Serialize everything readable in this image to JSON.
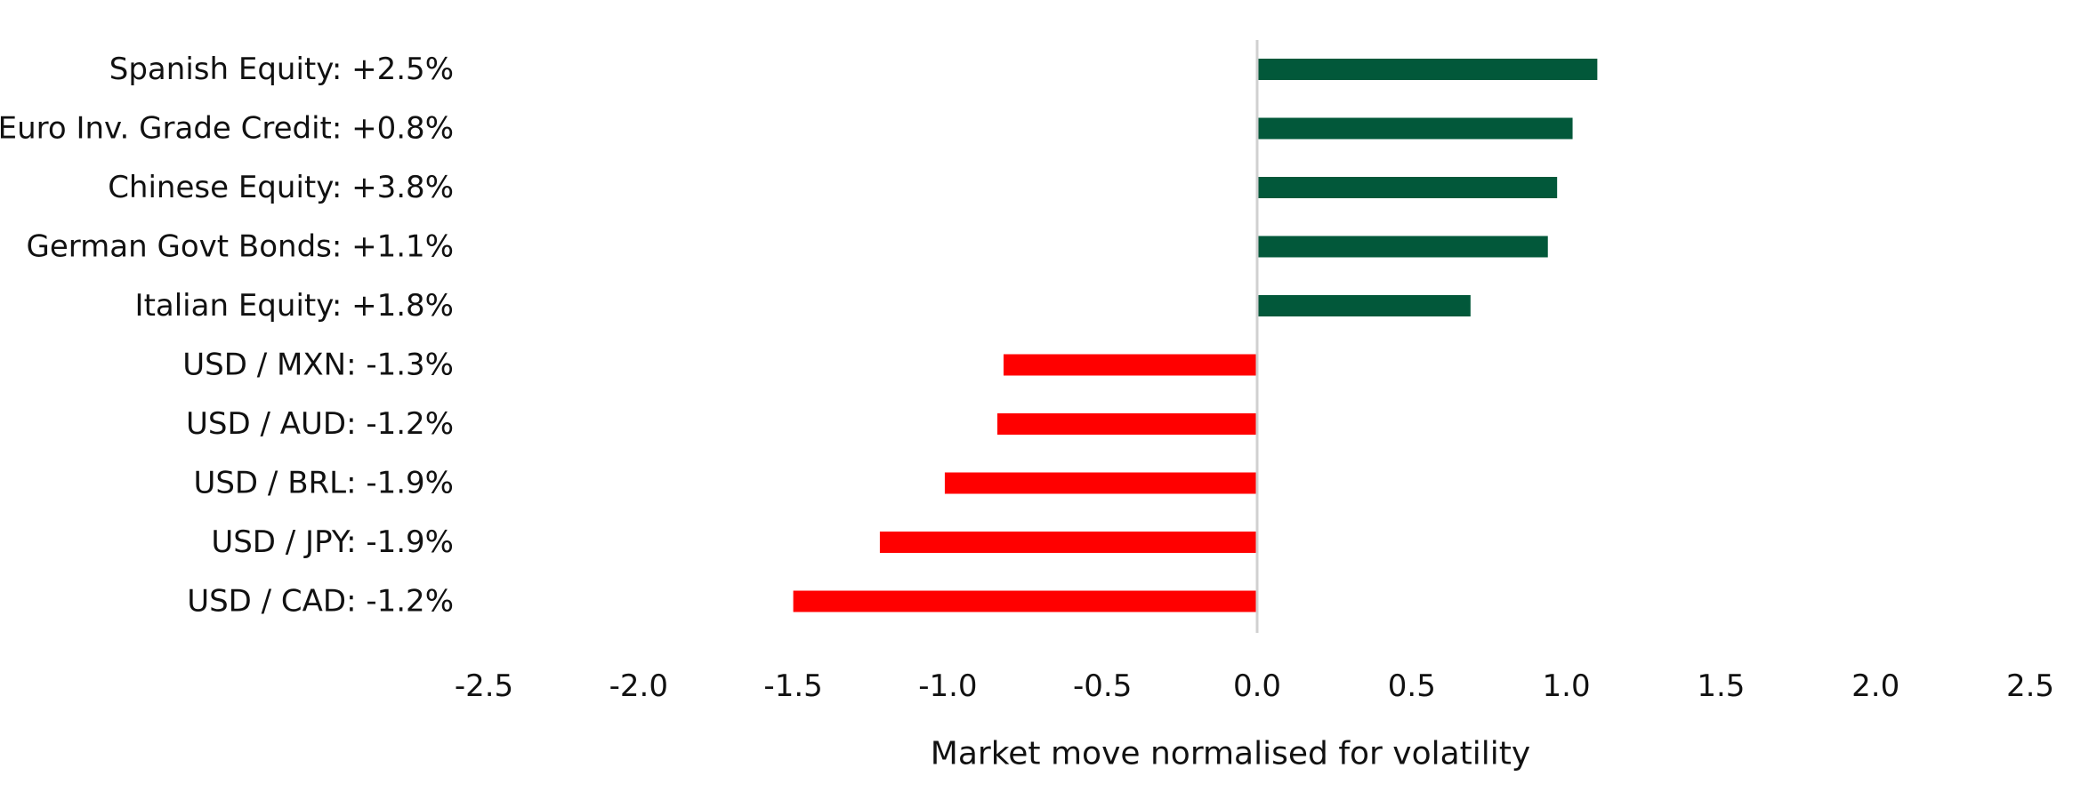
{
  "chart_data": {
    "type": "bar",
    "orientation": "horizontal",
    "categories": [
      "Spanish Equity: +2.5%",
      "Euro Inv. Grade Credit: +0.8%",
      "Chinese Equity: +3.8%",
      "German Govt Bonds: +1.1%",
      "Italian Equity: +1.8%",
      "USD / MXN: -1.3%",
      "USD / AUD: -1.2%",
      "USD / BRL: -1.9%",
      "USD / JPY: -1.9%",
      "USD / CAD: -1.2%"
    ],
    "values": [
      1.1,
      1.02,
      0.97,
      0.94,
      0.69,
      -0.82,
      -0.84,
      -1.01,
      -1.22,
      -1.5
    ],
    "xlabel": "Market move normalised for volatility",
    "ylabel": "",
    "title": "",
    "xlim": [
      -2.5,
      2.5
    ],
    "xticks": [
      -2.5,
      -2.0,
      -1.5,
      -1.0,
      -0.5,
      0.0,
      0.5,
      1.0,
      1.5,
      2.0,
      2.5
    ],
    "xtick_labels": [
      "-2.5",
      "-2.0",
      "-1.5",
      "-1.0",
      "-0.5",
      "0.0",
      "0.5",
      "1.0",
      "1.5",
      "2.0",
      "2.5"
    ],
    "grid": false,
    "legend": "none",
    "colors": {
      "positive": "#02583a",
      "negative": "#ff0000",
      "zero_line": "#d0d0d0"
    }
  }
}
